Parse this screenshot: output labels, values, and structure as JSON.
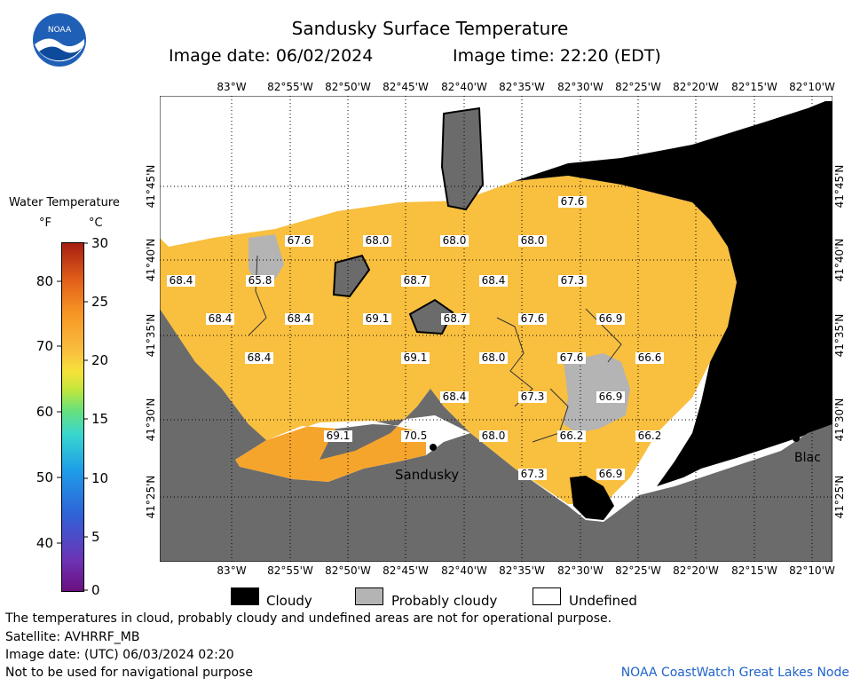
{
  "title": "Sandusky Surface Temperature",
  "image_date_label": "Image date: 06/02/2024",
  "image_time_label": "Image time: 22:20 (EDT)",
  "logo_text": "NOAA",
  "scale": {
    "title": "Water Temperature",
    "unit_f": "°F",
    "unit_c": "°C",
    "f_ticks": [
      "80",
      "70",
      "60",
      "50",
      "40"
    ],
    "c_ticks": [
      "30",
      "25",
      "20",
      "15",
      "10",
      "5",
      "0"
    ]
  },
  "longitudes": [
    "83°W",
    "82°55'W",
    "82°50'W",
    "82°45'W",
    "82°40'W",
    "82°35'W",
    "82°30'W",
    "82°25'W",
    "82°20'W",
    "82°15'W",
    "82°10'W"
  ],
  "latitudes": [
    "41°45'N",
    "41°40'N",
    "41°35'N",
    "41°30'N",
    "41°25'N"
  ],
  "temperature_labels": [
    {
      "value": "67.6"
    },
    {
      "value": "67.6"
    },
    {
      "value": "68.0"
    },
    {
      "value": "68.0"
    },
    {
      "value": "68.0"
    },
    {
      "value": "68.4"
    },
    {
      "value": "65.8"
    },
    {
      "value": "68.7"
    },
    {
      "value": "68.4"
    },
    {
      "value": "67.3"
    },
    {
      "value": "68.4"
    },
    {
      "value": "68.4"
    },
    {
      "value": "69.1"
    },
    {
      "value": "68.7"
    },
    {
      "value": "67.6"
    },
    {
      "value": "66.9"
    },
    {
      "value": "68.4"
    },
    {
      "value": "69.1"
    },
    {
      "value": "68.0"
    },
    {
      "value": "67.6"
    },
    {
      "value": "66.6"
    },
    {
      "value": "68.4"
    },
    {
      "value": "67.3"
    },
    {
      "value": "66.9"
    },
    {
      "value": "69.1"
    },
    {
      "value": "70.5"
    },
    {
      "value": "68.0"
    },
    {
      "value": "66.2"
    },
    {
      "value": "66.2"
    },
    {
      "value": "67.3"
    },
    {
      "value": "66.9"
    }
  ],
  "place_labels": [
    "Sandusky",
    "Blac"
  ],
  "legend": {
    "cloudy": "Cloudy",
    "probably_cloudy": "Probably cloudy",
    "undefined": "Undefined"
  },
  "footer": {
    "disclaimer": "The temperatures in cloud, probably cloudy and undefined areas are not for operational purpose.",
    "satellite": "Satellite: AVHRRF_MB",
    "utc_date": "Image date: (UTC) 06/03/2024  02:20",
    "nav": "Not to be used for navigational purpose",
    "credit": "NOAA CoastWatch Great Lakes Node"
  },
  "colors": {
    "water": "#f9bf3f",
    "water_warm": "#f6a52c",
    "land": "#6b6b6b",
    "cloudy": "#000000",
    "probably_cloudy": "#b4b4b4",
    "undefined": "#ffffff",
    "credit": "#1f63c8"
  }
}
